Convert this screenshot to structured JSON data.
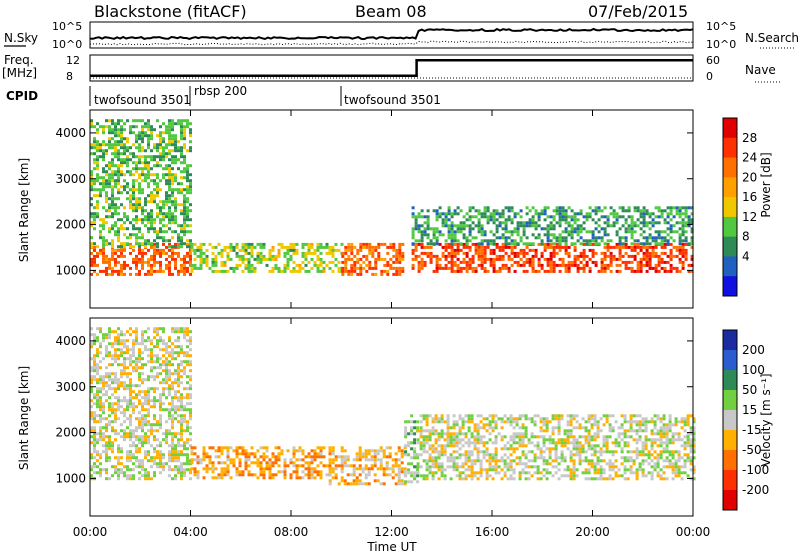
{
  "header": {
    "station": "Blackstone (fitACF)",
    "beam": "Beam 08",
    "date": "07/Feb/2015"
  },
  "noise_panel": {
    "left_label": "N.Sky",
    "right_label": "N.Search",
    "left_ticks": [
      "10^5",
      "10^0"
    ],
    "right_ticks": [
      "10^5",
      "10^0"
    ]
  },
  "freq_panel": {
    "left_label_1": "Freq.",
    "left_label_2": "[MHz]",
    "right_label": "Nave",
    "left_ticks": [
      "12",
      "8"
    ],
    "right_ticks": [
      "60",
      "0"
    ]
  },
  "cpid": {
    "label": "CPID",
    "segments": [
      "twofsound 3501",
      "rbsp 200",
      "twofsound 3501"
    ]
  },
  "power_panel": {
    "ylabel": "Slant Range [km]",
    "cbar_label": "Power [dB]",
    "cbar_ticks": [
      "28",
      "24",
      "20",
      "16",
      "12",
      "8",
      "4"
    ],
    "cbar_colors": [
      "#1010e0",
      "#2060c0",
      "#2e8b57",
      "#50c840",
      "#f0c800",
      "#ffa000",
      "#ff7000",
      "#ff3000",
      "#e00000"
    ]
  },
  "velocity_panel": {
    "ylabel": "Slant Range [km]",
    "cbar_label": "Velocity [m s⁻¹]",
    "cbar_ticks": [
      "200",
      "100",
      "50",
      "15",
      "-15",
      "-50",
      "-100",
      "-200"
    ],
    "cbar_colors": [
      "#1a2ca0",
      "#2a5cd0",
      "#2e8b57",
      "#70d040",
      "#c8c8c8",
      "#ffb000",
      "#ff7000",
      "#ff3000",
      "#e00000"
    ]
  },
  "x_axis": {
    "label": "Time UT",
    "ticks": [
      "00:00",
      "04:00",
      "08:00",
      "12:00",
      "16:00",
      "20:00",
      "00:00"
    ]
  },
  "chart_data": {
    "type": "heatmap",
    "x_range_hours": [
      0,
      24
    ],
    "y_range_km": [
      180,
      4500
    ],
    "y_ticks": [
      1000,
      2000,
      3000,
      4000
    ],
    "power_db_range": [
      0,
      32
    ],
    "velocity_range": [
      -250,
      250
    ],
    "cpid_changes_hours": [
      4.0,
      10.0
    ],
    "noise_step_hour": 13.0,
    "freq_mhz": [
      {
        "t": 0,
        "v": 8.2
      },
      {
        "t": 13.0,
        "v": 8.2
      },
      {
        "t": 13.0,
        "v": 11.8
      },
      {
        "t": 24,
        "v": 11.8
      }
    ],
    "power_echo_regions": [
      {
        "t0": 0.0,
        "t1": 4.0,
        "r0": 900,
        "r1": 1600,
        "db": 24
      },
      {
        "t0": 0.0,
        "t1": 4.0,
        "r0": 1500,
        "r1": 4300,
        "db": 12
      },
      {
        "t0": 4.0,
        "t1": 10.0,
        "r0": 1000,
        "r1": 1600,
        "db": 14
      },
      {
        "t0": 10.0,
        "t1": 12.5,
        "r0": 900,
        "r1": 1600,
        "db": 24
      },
      {
        "t0": 12.8,
        "t1": 24.0,
        "r0": 1000,
        "r1": 1600,
        "db": 26
      },
      {
        "t0": 12.8,
        "t1": 24.0,
        "r0": 1600,
        "r1": 2400,
        "db": 10
      }
    ],
    "velocity_echo_regions": [
      {
        "t0": 0.0,
        "t1": 4.0,
        "r0": 1000,
        "r1": 4300,
        "v": 0
      },
      {
        "t0": 4.0,
        "t1": 9.5,
        "r0": 1000,
        "r1": 1700,
        "v": -70
      },
      {
        "t0": 9.5,
        "t1": 12.5,
        "r0": 900,
        "r1": 1700,
        "v": -40
      },
      {
        "t0": 12.5,
        "t1": 13.0,
        "r0": 900,
        "r1": 2400,
        "v": 40
      },
      {
        "t0": 13.0,
        "t1": 24.0,
        "r0": 1000,
        "r1": 2400,
        "v": 0
      }
    ]
  }
}
